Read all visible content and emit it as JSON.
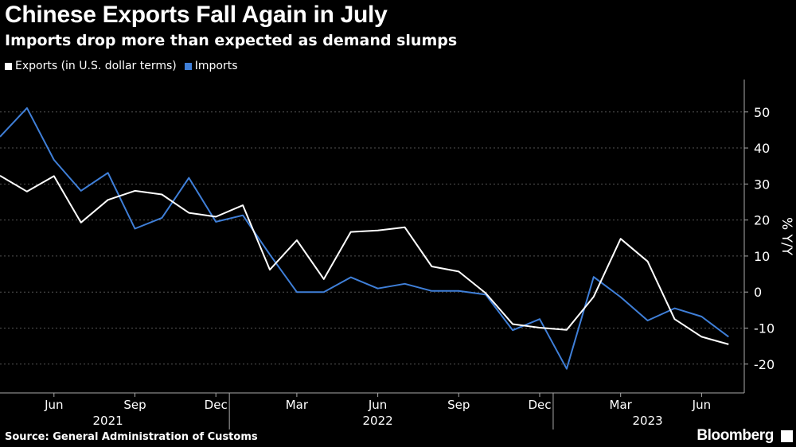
{
  "header": {
    "title": "Chinese Exports Fall Again in July",
    "subtitle": "Imports drop more than expected as demand slumps"
  },
  "legend": {
    "exports_label": "Exports (in U.S. dollar terms)",
    "imports_label": "Imports"
  },
  "footer": {
    "source": "Source: General Administration of Customs",
    "brand": "Bloomberg"
  },
  "colors": {
    "exports": "#ffffff",
    "imports": "#3f7fd8",
    "background": "#000000",
    "grid": "#555555"
  },
  "chart_data": {
    "type": "line",
    "title": "Chinese Exports Fall Again in July",
    "subtitle": "Imports drop more than expected as demand slumps",
    "xlabel": "",
    "ylabel": "% Y/Y",
    "ylim": [
      -28,
      59
    ],
    "yticks": [
      50,
      40,
      30,
      20,
      10,
      0,
      -10,
      -20
    ],
    "ytick_labels": [
      "50",
      "40",
      "30",
      "20",
      "10",
      "0",
      "-10",
      "-20"
    ],
    "x": [
      "2021-04",
      "2021-05",
      "2021-06",
      "2021-07",
      "2021-08",
      "2021-09",
      "2021-10",
      "2021-11",
      "2021-12",
      "2022-01",
      "2022-02",
      "2022-03",
      "2022-04",
      "2022-05",
      "2022-06",
      "2022-07",
      "2022-08",
      "2022-09",
      "2022-10",
      "2022-11",
      "2022-12",
      "2023-01",
      "2023-02",
      "2023-03",
      "2023-04",
      "2023-05",
      "2023-06",
      "2023-07"
    ],
    "month_ticks": [
      {
        "label": "Jun",
        "index": 2
      },
      {
        "label": "Sep",
        "index": 5
      },
      {
        "label": "Dec",
        "index": 8
      },
      {
        "label": "Mar",
        "index": 11
      },
      {
        "label": "Jun",
        "index": 14
      },
      {
        "label": "Sep",
        "index": 17
      },
      {
        "label": "Dec",
        "index": 20
      },
      {
        "label": "Mar",
        "index": 23
      },
      {
        "label": "Jun",
        "index": 26
      }
    ],
    "year_ticks": [
      {
        "label": "2021",
        "index": 4
      },
      {
        "label": "2022",
        "index": 14
      },
      {
        "label": "2023",
        "index": 24
      }
    ],
    "year_dividers": [
      8.5,
      20.5
    ],
    "series": [
      {
        "name": "Exports (in U.S. dollar terms)",
        "color": "#ffffff",
        "values": [
          32.3,
          27.9,
          32.2,
          19.3,
          25.6,
          28.1,
          27.1,
          22.0,
          20.9,
          24.1,
          6.2,
          14.4,
          3.6,
          16.7,
          17.1,
          18.0,
          7.1,
          5.7,
          -0.3,
          -8.9,
          -9.9,
          -10.5,
          -1.3,
          14.8,
          8.5,
          -7.5,
          -12.4,
          -14.5
        ]
      },
      {
        "name": "Imports",
        "color": "#3f7fd8",
        "values": [
          43.1,
          51.1,
          36.7,
          28.1,
          33.1,
          17.6,
          20.6,
          31.7,
          19.5,
          21.3,
          10.4,
          0.0,
          0.0,
          4.1,
          1.0,
          2.3,
          0.3,
          0.3,
          -0.7,
          -10.6,
          -7.5,
          -21.3,
          4.2,
          -1.4,
          -7.9,
          -4.5,
          -6.8,
          -12.4
        ]
      }
    ]
  }
}
